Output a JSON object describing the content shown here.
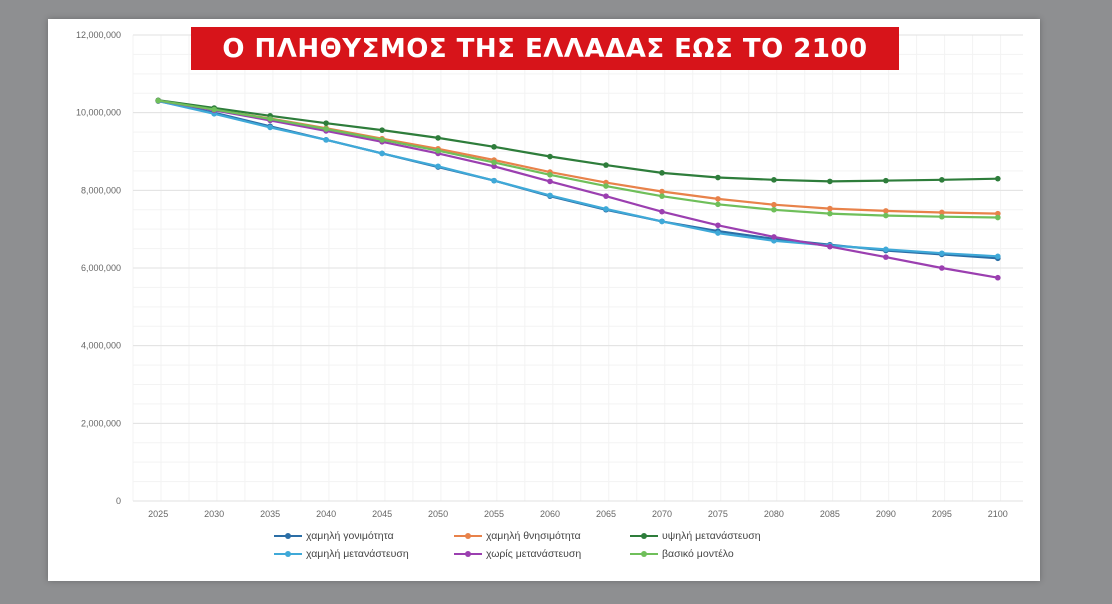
{
  "chart_data": {
    "type": "line",
    "title": "Ο ΠΛΗΘΥΣΜΟΣ ΤΗΣ ΕΛΛΑΔΑΣ ΕΩΣ ΤΟ 2100",
    "xlabel": "",
    "ylabel": "",
    "x": [
      "2025",
      "2030",
      "2035",
      "2040",
      "2045",
      "2050",
      "2055",
      "2060",
      "2065",
      "2070",
      "2075",
      "2080",
      "2085",
      "2090",
      "2095",
      "2100"
    ],
    "ylim": [
      0,
      12000000
    ],
    "yticks": [
      0,
      2000000,
      4000000,
      6000000,
      8000000,
      10000000,
      12000000
    ],
    "ytick_labels": [
      "0",
      "2,000,000",
      "4,000,000",
      "6,000,000",
      "8,000,000",
      "10,000,000",
      "12,000,000"
    ],
    "grid": true,
    "legend_position": "bottom",
    "series": [
      {
        "name": "χαμηλή γονιμότητα",
        "color": "#2b6ea6",
        "values": [
          10300000,
          10000000,
          9650000,
          9300000,
          8950000,
          8600000,
          8250000,
          7850000,
          7500000,
          7200000,
          6950000,
          6750000,
          6600000,
          6450000,
          6350000,
          6250000
        ]
      },
      {
        "name": "χαμηλή θνησιμότητα",
        "color": "#e8824a",
        "values": [
          10300000,
          10080000,
          9850000,
          9600000,
          9330000,
          9070000,
          8780000,
          8470000,
          8200000,
          7970000,
          7780000,
          7630000,
          7530000,
          7470000,
          7430000,
          7400000
        ]
      },
      {
        "name": "υψηλή μετανάστευση",
        "color": "#2e7d3b",
        "values": [
          10320000,
          10120000,
          9920000,
          9730000,
          9550000,
          9350000,
          9120000,
          8870000,
          8650000,
          8450000,
          8330000,
          8270000,
          8230000,
          8250000,
          8270000,
          8300000
        ]
      },
      {
        "name": "χαμηλή μετανάστευση",
        "color": "#3fa9d8",
        "values": [
          10300000,
          9970000,
          9620000,
          9300000,
          8950000,
          8620000,
          8250000,
          7870000,
          7520000,
          7200000,
          6900000,
          6700000,
          6580000,
          6480000,
          6380000,
          6300000
        ]
      },
      {
        "name": "χωρίς μετανάστευση",
        "color": "#9b3fb0",
        "values": [
          10310000,
          10060000,
          9800000,
          9530000,
          9250000,
          8950000,
          8620000,
          8230000,
          7850000,
          7450000,
          7100000,
          6800000,
          6550000,
          6280000,
          6000000,
          5750000
        ]
      },
      {
        "name": "βασικό μοντέλο",
        "color": "#6fbf5a",
        "values": [
          10310000,
          10080000,
          9840000,
          9580000,
          9300000,
          9020000,
          8720000,
          8400000,
          8110000,
          7850000,
          7640000,
          7500000,
          7400000,
          7350000,
          7320000,
          7300000
        ]
      }
    ]
  }
}
